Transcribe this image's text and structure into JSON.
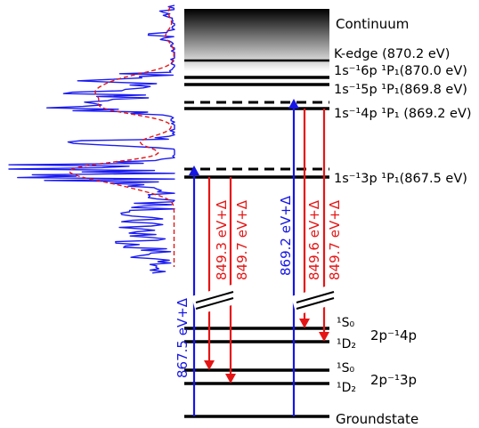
{
  "levels": {
    "continuum": "Continuum",
    "k_edge": "K-edge (870.2 eV)",
    "state_6p": "1s⁻¹6p ¹P₁(870.0 eV)",
    "state_5p": "1s⁻¹5p ¹P₁(869.8 eV)",
    "state_4p": "1s⁻¹4p ¹P₁ (869.2 eV)",
    "state_3p": "1s⁻¹3p ¹P₁(867.5 eV)",
    "s0_upper": "¹S₀",
    "d2_upper": "¹D₂",
    "config_4p": "2p⁻¹4p",
    "s0_lower": "¹S₀",
    "d2_lower": "¹D₂",
    "config_3p": "2p⁻¹3p",
    "groundstate": "Groundstate"
  },
  "transitions": {
    "absorption_3p": "867.5 eV+Δ",
    "absorption_4p": "869.2 eV+Δ",
    "emission_3p_s0": "849.3 eV+Δ",
    "emission_3p_d2": "849.7 eV+Δ",
    "emission_4p_s0": "849.6 eV+Δ",
    "emission_4p_d2": "849.7 eV+Δ"
  },
  "colors": {
    "absorption": "#1515e6",
    "emission": "#e61515",
    "level": "#000000",
    "spectrum_solid": "#1c1cf0",
    "spectrum_dashed": "#e61515"
  }
}
